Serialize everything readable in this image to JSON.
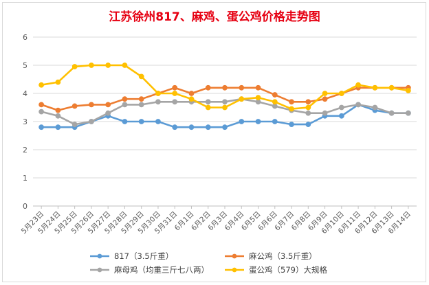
{
  "chart_data": {
    "type": "line",
    "title": "江苏徐州817、麻鸡、蛋公鸡价格走势图",
    "xlabel": "",
    "ylabel": "",
    "ylim": [
      0,
      6
    ],
    "yticks": [
      "0",
      "1",
      "2",
      "3",
      "4",
      "5",
      "6"
    ],
    "grid": true,
    "legend_position": "bottom",
    "categories": [
      "5月23日",
      "5月24日",
      "5月25日",
      "5月26日",
      "5月27日",
      "5月28日",
      "5月29日",
      "5月30日",
      "5月31日",
      "6月1日",
      "6月2日",
      "6月3日",
      "6月4日",
      "6月5日",
      "6月6日",
      "6月7日",
      "6月8日",
      "6月9日",
      "6月10日",
      "6月11日",
      "6月12日",
      "6月13日",
      "6月14日"
    ],
    "series": [
      {
        "name": "817（3.5斤重）",
        "color": "#5b9bd5",
        "values": [
          2.8,
          2.8,
          2.8,
          3.0,
          3.2,
          3.0,
          3.0,
          3.0,
          2.8,
          2.8,
          2.8,
          2.8,
          3.0,
          3.0,
          3.0,
          2.9,
          2.9,
          3.2,
          3.2,
          3.6,
          3.4,
          3.3,
          3.3
        ]
      },
      {
        "name": "麻公鸡（3.5斤重）",
        "color": "#ed7d31",
        "values": [
          3.6,
          3.4,
          3.55,
          3.6,
          3.6,
          3.8,
          3.8,
          4.0,
          4.2,
          4.0,
          4.2,
          4.2,
          4.2,
          4.2,
          3.95,
          3.7,
          3.7,
          3.8,
          4.0,
          4.2,
          4.2,
          4.2,
          4.2
        ]
      },
      {
        "name": "麻母鸡（均重三斤七八两）",
        "color": "#a5a5a5",
        "values": [
          3.35,
          3.2,
          2.9,
          3.0,
          3.3,
          3.6,
          3.6,
          3.7,
          3.7,
          3.7,
          3.7,
          3.7,
          3.8,
          3.7,
          3.55,
          3.4,
          3.3,
          3.3,
          3.5,
          3.6,
          3.5,
          3.3,
          3.3
        ]
      },
      {
        "name": "蛋公鸡（579）大规格",
        "color": "#ffc000",
        "values": [
          4.3,
          4.4,
          4.95,
          5.0,
          5.0,
          5.0,
          4.6,
          4.0,
          4.0,
          3.8,
          3.5,
          3.5,
          3.8,
          3.85,
          3.7,
          3.45,
          3.5,
          4.0,
          4.0,
          4.3,
          4.2,
          4.2,
          4.1
        ]
      }
    ]
  }
}
